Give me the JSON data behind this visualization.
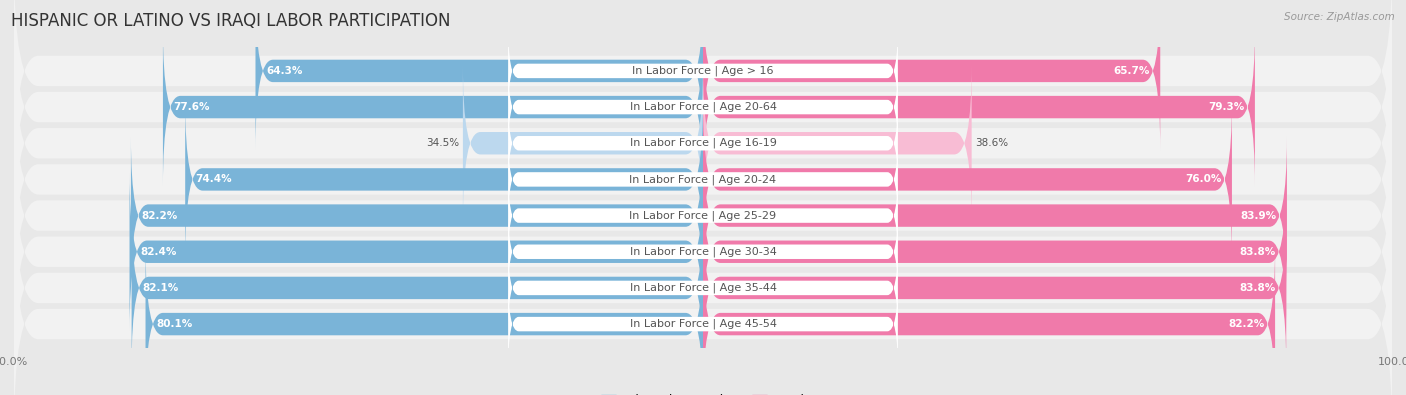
{
  "title": "HISPANIC OR LATINO VS IRAQI LABOR PARTICIPATION",
  "source": "Source: ZipAtlas.com",
  "categories": [
    "In Labor Force | Age > 16",
    "In Labor Force | Age 20-64",
    "In Labor Force | Age 16-19",
    "In Labor Force | Age 20-24",
    "In Labor Force | Age 25-29",
    "In Labor Force | Age 30-34",
    "In Labor Force | Age 35-44",
    "In Labor Force | Age 45-54"
  ],
  "hispanic_values": [
    64.3,
    77.6,
    34.5,
    74.4,
    82.2,
    82.4,
    82.1,
    80.1
  ],
  "iraqi_values": [
    65.7,
    79.3,
    38.6,
    76.0,
    83.9,
    83.8,
    83.8,
    82.2
  ],
  "hispanic_color": "#7ab4d8",
  "iraqi_color": "#f07aaa",
  "hispanic_light_color": "#bcd8ee",
  "iraqi_light_color": "#f8bcd4",
  "bg_color": "#e8e8e8",
  "row_bg_color": "#f2f2f2",
  "bar_height": 0.62,
  "max_value": 100.0,
  "title_fontsize": 12,
  "label_fontsize": 8,
  "value_fontsize": 7.5,
  "legend_fontsize": 9,
  "center_label_bg": "#ffffff"
}
